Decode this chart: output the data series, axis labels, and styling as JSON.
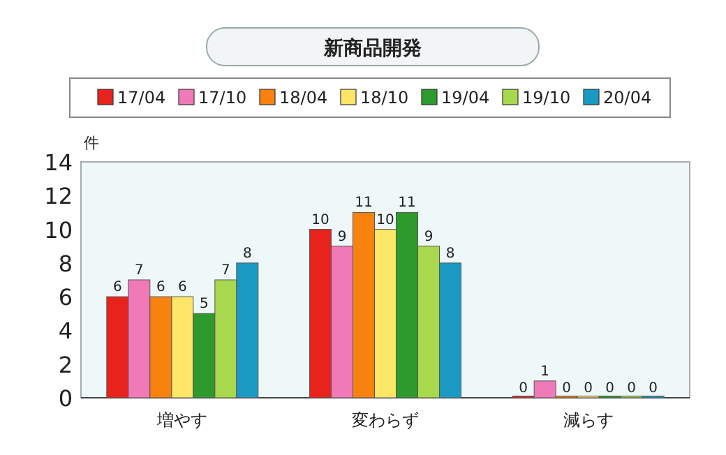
{
  "chart_data": {
    "type": "bar",
    "title": "新商品開発",
    "ylabel": "件",
    "categories": [
      "増やす",
      "変わらず",
      "減らす"
    ],
    "series": [
      {
        "name": "17/04",
        "color": "#e8231e",
        "values": [
          6,
          10,
          0
        ]
      },
      {
        "name": "17/10",
        "color": "#f07ab8",
        "values": [
          7,
          9,
          1
        ]
      },
      {
        "name": "18/04",
        "color": "#f7820f",
        "values": [
          6,
          11,
          0
        ]
      },
      {
        "name": "18/10",
        "color": "#fde566",
        "values": [
          6,
          10,
          0
        ]
      },
      {
        "name": "19/04",
        "color": "#2e9a2e",
        "values": [
          5,
          11,
          0
        ]
      },
      {
        "name": "19/10",
        "color": "#a8d84e",
        "values": [
          7,
          9,
          0
        ]
      },
      {
        "name": "20/04",
        "color": "#1a9ac2",
        "values": [
          8,
          8,
          0
        ]
      }
    ],
    "ylim": [
      0,
      14
    ],
    "yticks": [
      0,
      2,
      4,
      6,
      8,
      10,
      12,
      14
    ],
    "data_labels": true,
    "legend": "top"
  }
}
